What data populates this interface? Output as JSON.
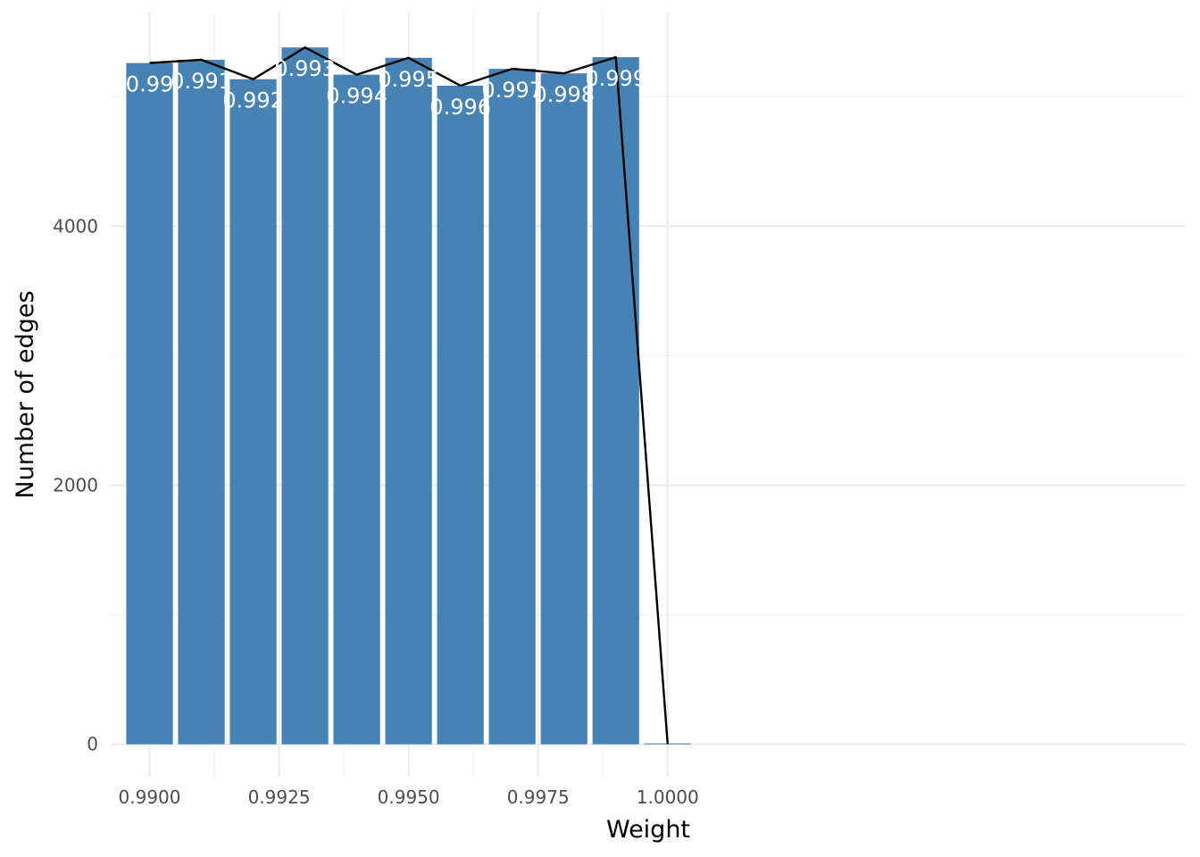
{
  "chart_data": {
    "type": "bar",
    "title": "",
    "xlabel": "Weight",
    "ylabel": "Number of edges",
    "x_ticks": [
      "0.9900",
      "0.9925",
      "0.9950",
      "0.9975",
      "1.0000"
    ],
    "x_tick_values": [
      0.99,
      0.9925,
      0.995,
      0.9975,
      1.0
    ],
    "y_ticks": [
      "0",
      "2000",
      "4000"
    ],
    "y_tick_values": [
      0,
      2000,
      4000
    ],
    "xlim": [
      0.98925,
      1.01
    ],
    "ylim": [
      -250,
      5650
    ],
    "grid": true,
    "legend": "none",
    "bar_color": "#4682b4",
    "line_color": "#000000",
    "bars": [
      {
        "x": 0.99,
        "value": 5260,
        "label": "0.99"
      },
      {
        "x": 0.991,
        "value": 5285,
        "label": "0.991"
      },
      {
        "x": 0.992,
        "value": 5135,
        "label": "0.992"
      },
      {
        "x": 0.993,
        "value": 5380,
        "label": "0.993"
      },
      {
        "x": 0.994,
        "value": 5170,
        "label": "0.994"
      },
      {
        "x": 0.995,
        "value": 5300,
        "label": "0.995"
      },
      {
        "x": 0.996,
        "value": 5085,
        "label": "0.996"
      },
      {
        "x": 0.997,
        "value": 5215,
        "label": "0.997"
      },
      {
        "x": 0.998,
        "value": 5180,
        "label": "0.998"
      },
      {
        "x": 0.999,
        "value": 5305,
        "label": "0.999"
      },
      {
        "x": 1.0,
        "value": 2,
        "label": ""
      }
    ]
  }
}
